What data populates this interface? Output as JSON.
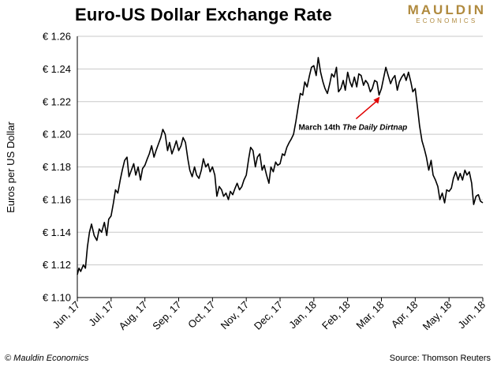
{
  "title": "Euro-US Dollar Exchange Rate",
  "logo": {
    "line1": "MAULDIN",
    "line2": "ECONOMICS"
  },
  "footer": {
    "copyright": "© Mauldin Economics",
    "source": "Source: Thomson Reuters"
  },
  "colors": {
    "line": "#000000",
    "grid": "#c8c8c8",
    "annotation_arrow": "#e00000",
    "logo": "#b08a3e"
  },
  "chart_data": {
    "type": "line",
    "title": "Euro-US Dollar Exchange Rate",
    "ylabel": "Euros per US Dollar",
    "xlabel": "",
    "ylim": [
      1.1,
      1.26
    ],
    "yticks": [
      1.1,
      1.12,
      1.14,
      1.16,
      1.18,
      1.2,
      1.22,
      1.24,
      1.26
    ],
    "ytick_labels": [
      "€ 1.10",
      "€ 1.12",
      "€ 1.14",
      "€ 1.16",
      "€ 1.18",
      "€ 1.20",
      "€ 1.22",
      "€ 1.24",
      "€ 1.26"
    ],
    "xtick_labels": [
      "Jun, 17",
      "Jul, 17",
      "Aug, 17",
      "Sep, 17",
      "Oct, 17",
      "Nov, 17",
      "Dec, 17",
      "Jan, 18",
      "Feb, 18",
      "Mar, 18",
      "Apr, 18",
      "May, 18",
      "Jun, 18"
    ],
    "grid": "horizontal",
    "annotation": {
      "text_prefix": "March 14th ",
      "text_italic": "The Daily Dirtnap",
      "x": 8.95,
      "y": 1.223
    },
    "series": [
      {
        "values": [
          [
            0.0,
            1.114
          ],
          [
            0.05,
            1.118
          ],
          [
            0.1,
            1.116
          ],
          [
            0.18,
            1.12
          ],
          [
            0.24,
            1.118
          ],
          [
            0.3,
            1.131
          ],
          [
            0.36,
            1.14
          ],
          [
            0.42,
            1.145
          ],
          [
            0.5,
            1.138
          ],
          [
            0.58,
            1.135
          ],
          [
            0.65,
            1.142
          ],
          [
            0.72,
            1.14
          ],
          [
            0.8,
            1.146
          ],
          [
            0.87,
            1.138
          ],
          [
            0.93,
            1.148
          ],
          [
            1.0,
            1.15
          ],
          [
            1.07,
            1.158
          ],
          [
            1.13,
            1.166
          ],
          [
            1.2,
            1.164
          ],
          [
            1.27,
            1.172
          ],
          [
            1.33,
            1.178
          ],
          [
            1.4,
            1.184
          ],
          [
            1.47,
            1.186
          ],
          [
            1.53,
            1.174
          ],
          [
            1.6,
            1.178
          ],
          [
            1.67,
            1.182
          ],
          [
            1.73,
            1.175
          ],
          [
            1.8,
            1.18
          ],
          [
            1.87,
            1.172
          ],
          [
            1.93,
            1.179
          ],
          [
            2.0,
            1.181
          ],
          [
            2.07,
            1.185
          ],
          [
            2.13,
            1.188
          ],
          [
            2.2,
            1.193
          ],
          [
            2.27,
            1.186
          ],
          [
            2.33,
            1.19
          ],
          [
            2.4,
            1.194
          ],
          [
            2.47,
            1.198
          ],
          [
            2.53,
            1.203
          ],
          [
            2.6,
            1.2
          ],
          [
            2.67,
            1.19
          ],
          [
            2.73,
            1.195
          ],
          [
            2.8,
            1.188
          ],
          [
            2.87,
            1.192
          ],
          [
            2.93,
            1.196
          ],
          [
            3.0,
            1.19
          ],
          [
            3.07,
            1.193
          ],
          [
            3.13,
            1.198
          ],
          [
            3.2,
            1.195
          ],
          [
            3.27,
            1.185
          ],
          [
            3.33,
            1.178
          ],
          [
            3.4,
            1.174
          ],
          [
            3.47,
            1.18
          ],
          [
            3.53,
            1.175
          ],
          [
            3.6,
            1.173
          ],
          [
            3.67,
            1.178
          ],
          [
            3.73,
            1.185
          ],
          [
            3.8,
            1.18
          ],
          [
            3.87,
            1.182
          ],
          [
            3.93,
            1.177
          ],
          [
            4.0,
            1.18
          ],
          [
            4.07,
            1.175
          ],
          [
            4.13,
            1.162
          ],
          [
            4.2,
            1.168
          ],
          [
            4.27,
            1.166
          ],
          [
            4.33,
            1.162
          ],
          [
            4.4,
            1.164
          ],
          [
            4.47,
            1.16
          ],
          [
            4.53,
            1.165
          ],
          [
            4.6,
            1.163
          ],
          [
            4.67,
            1.167
          ],
          [
            4.73,
            1.17
          ],
          [
            4.8,
            1.166
          ],
          [
            4.87,
            1.168
          ],
          [
            4.93,
            1.172
          ],
          [
            5.0,
            1.175
          ],
          [
            5.07,
            1.185
          ],
          [
            5.13,
            1.192
          ],
          [
            5.2,
            1.19
          ],
          [
            5.27,
            1.18
          ],
          [
            5.33,
            1.186
          ],
          [
            5.4,
            1.188
          ],
          [
            5.47,
            1.178
          ],
          [
            5.53,
            1.181
          ],
          [
            5.6,
            1.175
          ],
          [
            5.67,
            1.17
          ],
          [
            5.73,
            1.18
          ],
          [
            5.8,
            1.177
          ],
          [
            5.87,
            1.183
          ],
          [
            5.93,
            1.181
          ],
          [
            6.0,
            1.182
          ],
          [
            6.07,
            1.188
          ],
          [
            6.13,
            1.187
          ],
          [
            6.2,
            1.192
          ],
          [
            6.27,
            1.195
          ],
          [
            6.33,
            1.197
          ],
          [
            6.4,
            1.2
          ],
          [
            6.47,
            1.208
          ],
          [
            6.53,
            1.216
          ],
          [
            6.6,
            1.225
          ],
          [
            6.67,
            1.224
          ],
          [
            6.73,
            1.232
          ],
          [
            6.8,
            1.229
          ],
          [
            6.87,
            1.236
          ],
          [
            6.93,
            1.241
          ],
          [
            7.0,
            1.242
          ],
          [
            7.07,
            1.236
          ],
          [
            7.13,
            1.247
          ],
          [
            7.2,
            1.238
          ],
          [
            7.27,
            1.232
          ],
          [
            7.33,
            1.228
          ],
          [
            7.4,
            1.225
          ],
          [
            7.47,
            1.231
          ],
          [
            7.53,
            1.237
          ],
          [
            7.6,
            1.235
          ],
          [
            7.67,
            1.241
          ],
          [
            7.73,
            1.226
          ],
          [
            7.8,
            1.228
          ],
          [
            7.87,
            1.233
          ],
          [
            7.93,
            1.227
          ],
          [
            8.0,
            1.238
          ],
          [
            8.07,
            1.232
          ],
          [
            8.13,
            1.229
          ],
          [
            8.2,
            1.235
          ],
          [
            8.27,
            1.229
          ],
          [
            8.33,
            1.237
          ],
          [
            8.4,
            1.236
          ],
          [
            8.47,
            1.23
          ],
          [
            8.53,
            1.233
          ],
          [
            8.6,
            1.231
          ],
          [
            8.67,
            1.226
          ],
          [
            8.73,
            1.228
          ],
          [
            8.8,
            1.233
          ],
          [
            8.87,
            1.232
          ],
          [
            8.93,
            1.224
          ],
          [
            9.0,
            1.228
          ],
          [
            9.07,
            1.235
          ],
          [
            9.13,
            1.241
          ],
          [
            9.2,
            1.236
          ],
          [
            9.27,
            1.231
          ],
          [
            9.33,
            1.234
          ],
          [
            9.4,
            1.236
          ],
          [
            9.47,
            1.227
          ],
          [
            9.53,
            1.232
          ],
          [
            9.6,
            1.235
          ],
          [
            9.67,
            1.237
          ],
          [
            9.73,
            1.233
          ],
          [
            9.8,
            1.238
          ],
          [
            9.87,
            1.232
          ],
          [
            9.93,
            1.226
          ],
          [
            10.0,
            1.228
          ],
          [
            10.07,
            1.216
          ],
          [
            10.13,
            1.205
          ],
          [
            10.2,
            1.196
          ],
          [
            10.27,
            1.191
          ],
          [
            10.33,
            1.186
          ],
          [
            10.4,
            1.178
          ],
          [
            10.47,
            1.184
          ],
          [
            10.53,
            1.175
          ],
          [
            10.6,
            1.172
          ],
          [
            10.67,
            1.168
          ],
          [
            10.73,
            1.16
          ],
          [
            10.8,
            1.164
          ],
          [
            10.87,
            1.158
          ],
          [
            10.93,
            1.166
          ],
          [
            11.0,
            1.165
          ],
          [
            11.07,
            1.167
          ],
          [
            11.13,
            1.173
          ],
          [
            11.2,
            1.177
          ],
          [
            11.27,
            1.172
          ],
          [
            11.33,
            1.176
          ],
          [
            11.4,
            1.172
          ],
          [
            11.47,
            1.178
          ],
          [
            11.53,
            1.175
          ],
          [
            11.6,
            1.177
          ],
          [
            11.67,
            1.17
          ],
          [
            11.73,
            1.157
          ],
          [
            11.8,
            1.162
          ],
          [
            11.87,
            1.163
          ],
          [
            11.93,
            1.159
          ],
          [
            12.0,
            1.158
          ]
        ]
      }
    ]
  }
}
